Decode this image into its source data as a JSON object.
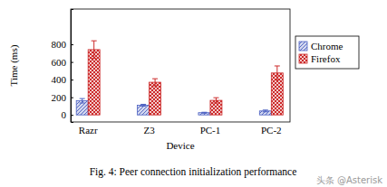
{
  "chart_data": {
    "type": "bar",
    "title": "Fig. 4: Peer connection initialization performance",
    "x_label": "Device",
    "y_label": "Time (ms)",
    "categories": [
      "Razr",
      "Z3",
      "PC-1",
      "PC-2"
    ],
    "series": [
      {
        "name": "Chrome",
        "color": "#4a5fc1",
        "values": [
          160,
          110,
          25,
          45
        ],
        "errors": [
          25,
          10,
          5,
          10
        ]
      },
      {
        "name": "Firefox",
        "color": "#cc2a2a",
        "values": [
          740,
          370,
          165,
          475
        ],
        "errors": [
          100,
          40,
          30,
          80
        ]
      }
    ],
    "ylim": [
      -80,
      1200
    ],
    "yticks": [
      0,
      200,
      400,
      600,
      800
    ],
    "legend": "outside-right",
    "annotations": [
      "头条 @Asterisk"
    ]
  }
}
